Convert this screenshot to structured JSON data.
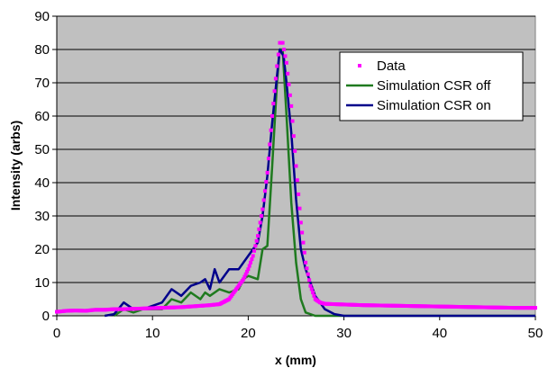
{
  "chart_data": {
    "type": "line",
    "title": "",
    "xlabel": "x (mm)",
    "ylabel": "Intensity (arbs)",
    "xlim": [
      0,
      50
    ],
    "ylim": [
      0,
      90
    ],
    "x_ticks": [
      0,
      10,
      20,
      30,
      40,
      50
    ],
    "y_ticks": [
      0,
      10,
      20,
      30,
      40,
      50,
      60,
      70,
      80,
      90
    ],
    "grid": "horizontal",
    "plot_background": "#c0c0c0",
    "legend_position": "top-right",
    "series": [
      {
        "name": "Data",
        "style": "markers",
        "color": "#ff00ff",
        "points": [
          [
            0,
            1.2
          ],
          [
            1,
            1.5
          ],
          [
            2,
            1.6
          ],
          [
            3,
            1.5
          ],
          [
            4,
            1.8
          ],
          [
            5,
            1.8
          ],
          [
            6,
            2.0
          ],
          [
            7,
            2.0
          ],
          [
            8,
            2.1
          ],
          [
            9,
            2.2
          ],
          [
            10,
            2.3
          ],
          [
            11,
            2.4
          ],
          [
            12,
            2.5
          ],
          [
            13,
            2.6
          ],
          [
            14,
            2.8
          ],
          [
            15,
            3.0
          ],
          [
            16,
            3.2
          ],
          [
            17,
            3.5
          ],
          [
            18,
            5
          ],
          [
            18.5,
            7
          ],
          [
            19,
            9
          ],
          [
            19.5,
            11
          ],
          [
            20,
            14
          ],
          [
            20.5,
            18
          ],
          [
            21,
            24
          ],
          [
            21.5,
            32
          ],
          [
            22,
            43
          ],
          [
            22.5,
            60
          ],
          [
            23,
            75
          ],
          [
            23.3,
            82
          ],
          [
            23.6,
            82
          ],
          [
            24,
            76
          ],
          [
            24.5,
            63
          ],
          [
            25,
            45
          ],
          [
            25.5,
            28
          ],
          [
            26,
            16
          ],
          [
            26.5,
            9
          ],
          [
            27,
            5
          ],
          [
            27.5,
            4
          ],
          [
            28,
            3.6
          ],
          [
            29,
            3.5
          ],
          [
            30,
            3.4
          ],
          [
            31,
            3.3
          ],
          [
            32,
            3.2
          ],
          [
            34,
            3.1
          ],
          [
            36,
            3.0
          ],
          [
            38,
            2.9
          ],
          [
            40,
            2.8
          ],
          [
            42,
            2.7
          ],
          [
            44,
            2.6
          ],
          [
            46,
            2.5
          ],
          [
            48,
            2.4
          ],
          [
            50,
            2.4
          ]
        ]
      },
      {
        "name": "Simulation CSR off",
        "style": "line",
        "color": "#1f7a1f",
        "points": [
          [
            6,
            0
          ],
          [
            7,
            2
          ],
          [
            8,
            1
          ],
          [
            9,
            2
          ],
          [
            10,
            2
          ],
          [
            11,
            2
          ],
          [
            12,
            5
          ],
          [
            13,
            4
          ],
          [
            14,
            7
          ],
          [
            15,
            5
          ],
          [
            15.5,
            7
          ],
          [
            16,
            6
          ],
          [
            17,
            8
          ],
          [
            18,
            7
          ],
          [
            19,
            8
          ],
          [
            19.5,
            11
          ],
          [
            20,
            12
          ],
          [
            21,
            11
          ],
          [
            21.5,
            20
          ],
          [
            22,
            21
          ],
          [
            22.5,
            45
          ],
          [
            23,
            70
          ],
          [
            23.3,
            80
          ],
          [
            23.6,
            80
          ],
          [
            24,
            60
          ],
          [
            24.5,
            34
          ],
          [
            25,
            16
          ],
          [
            25.5,
            5
          ],
          [
            26,
            1
          ],
          [
            27,
            0
          ],
          [
            30,
            0
          ],
          [
            50,
            0
          ]
        ]
      },
      {
        "name": "Simulation CSR on",
        "style": "line",
        "color": "#00008b",
        "points": [
          [
            5,
            0
          ],
          [
            6,
            0.5
          ],
          [
            7,
            4
          ],
          [
            8,
            2
          ],
          [
            9,
            2
          ],
          [
            10,
            3
          ],
          [
            11,
            4
          ],
          [
            12,
            8
          ],
          [
            13,
            6
          ],
          [
            14,
            9
          ],
          [
            15,
            10
          ],
          [
            15.5,
            11
          ],
          [
            16,
            8
          ],
          [
            16.5,
            14
          ],
          [
            17,
            10
          ],
          [
            18,
            14
          ],
          [
            19,
            14
          ],
          [
            20,
            18
          ],
          [
            21,
            22
          ],
          [
            21.5,
            30
          ],
          [
            22,
            42
          ],
          [
            22.5,
            58
          ],
          [
            23,
            72
          ],
          [
            23.3,
            80
          ],
          [
            23.7,
            78
          ],
          [
            24,
            70
          ],
          [
            24.5,
            55
          ],
          [
            25,
            35
          ],
          [
            25.5,
            20
          ],
          [
            26,
            14
          ],
          [
            27,
            6
          ],
          [
            28,
            2
          ],
          [
            29,
            0.5
          ],
          [
            30,
            0
          ],
          [
            50,
            0
          ]
        ]
      }
    ]
  }
}
